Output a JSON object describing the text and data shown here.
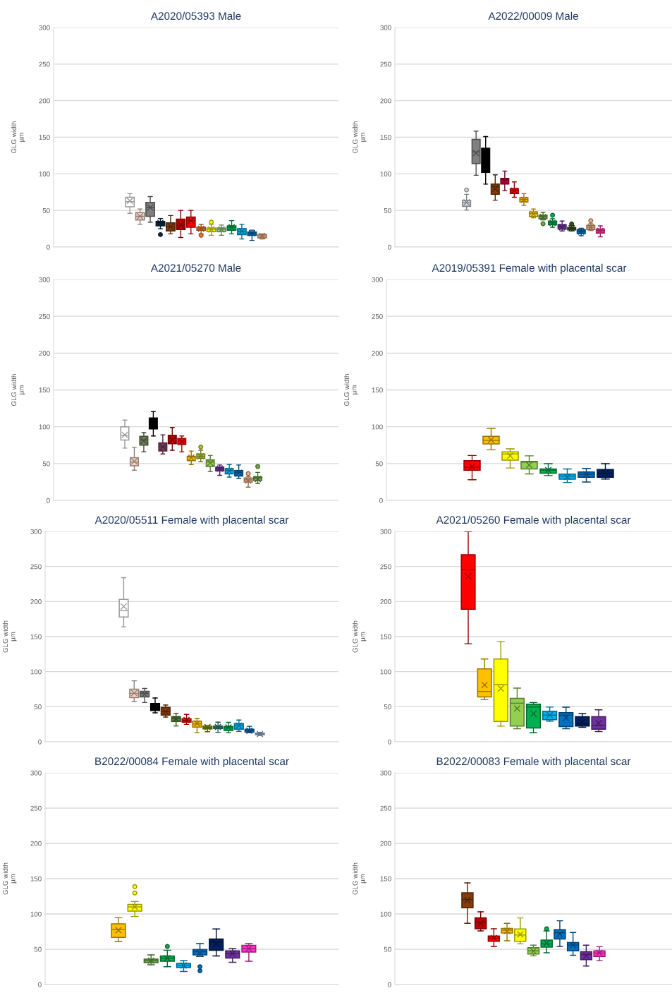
{
  "chart_data": [
    {
      "type": "box",
      "title": "A2020/05393 Male",
      "ylabel": "GLG width\nµm",
      "categories": [
        null,
        null,
        null,
        null,
        null,
        null,
        null,
        null,
        null,
        null,
        null,
        null,
        null,
        null,
        null,
        null,
        null,
        null,
        null,
        null,
        null,
        null,
        null,
        null,
        null,
        null,
        null,
        null
      ],
      "ylim": [
        0,
        300
      ],
      "yticks": [
        0,
        50,
        100,
        150,
        200,
        250,
        300
      ],
      "grid": "y",
      "tick_labels": "y",
      "colors": [
        null,
        null,
        null,
        null,
        null,
        null,
        null,
        "#ffffff",
        "#f2d0c0",
        "#808080",
        "#0f2a44",
        "#843c0c",
        "#c00000",
        "#ff0000",
        "#ed7d31",
        "#ffff00",
        "#a9d18e",
        "#00b050",
        "#00b0f0",
        "#0070c0",
        "#f4b183",
        null,
        null,
        null,
        null,
        null,
        null,
        null
      ],
      "boxes": [
        null,
        null,
        null,
        null,
        null,
        null,
        null,
        {
          "low": 46,
          "q1": 55,
          "median": 62,
          "q3": 68,
          "high": 73,
          "mean": 63
        },
        {
          "low": 31,
          "q1": 37,
          "median": 42,
          "q3": 47,
          "high": 52,
          "mean": 42
        },
        {
          "low": 34,
          "q1": 42,
          "median": 54,
          "q3": 61,
          "high": 69,
          "mean": 54
        },
        {
          "low": 25,
          "q1": 29,
          "median": 33,
          "q3": 35,
          "high": 39,
          "mean": 33,
          "outliers": [
            17
          ]
        },
        {
          "low": 18,
          "q1": 22,
          "median": 28,
          "q3": 33,
          "high": 43,
          "mean": 28
        },
        {
          "low": 13,
          "q1": 24,
          "median": 30,
          "q3": 38,
          "high": 50,
          "mean": 30
        },
        {
          "low": 18,
          "q1": 27,
          "median": 36,
          "q3": 41,
          "high": 50,
          "mean": 36
        },
        {
          "low": 18,
          "q1": 23,
          "median": 25,
          "q3": 27,
          "high": 31,
          "mean": 25,
          "outliers": [
            16
          ]
        },
        {
          "low": 16,
          "q1": 21,
          "median": 24,
          "q3": 26,
          "high": 31,
          "mean": 24,
          "outliers": [
            34
          ]
        },
        {
          "low": 16,
          "q1": 21,
          "median": 24,
          "q3": 26,
          "high": 30,
          "mean": 24
        },
        {
          "low": 18,
          "q1": 23,
          "median": 27,
          "q3": 29,
          "high": 36,
          "mean": 27
        },
        {
          "low": 11,
          "q1": 17,
          "median": 21.5,
          "q3": 25,
          "high": 31,
          "mean": 21.5
        },
        {
          "low": 9,
          "q1": 16,
          "median": 19,
          "q3": 20.5,
          "high": 23,
          "mean": 19
        },
        {
          "low": 11,
          "q1": 12.5,
          "median": 15,
          "q3": 17,
          "high": 18,
          "mean": 15
        },
        null,
        null,
        null,
        null,
        null,
        null,
        null
      ]
    },
    {
      "type": "box",
      "title": "A2022/00009 Male",
      "ylabel": "GLG width\nµm",
      "categories": [
        null,
        null,
        null,
        null,
        null,
        null,
        null,
        null,
        null,
        null,
        null,
        null,
        null,
        null,
        null,
        null,
        null,
        null,
        null,
        null,
        null,
        null,
        null,
        null,
        null,
        null,
        null,
        null,
        null
      ],
      "ylim": [
        0,
        300
      ],
      "yticks": [
        0,
        50,
        100,
        150,
        200,
        250,
        300
      ],
      "grid": "y",
      "tick_labels": "y",
      "colors": [
        null,
        null,
        null,
        null,
        null,
        null,
        null,
        "#d6dce5",
        "#808080",
        "#000000",
        "#843c0c",
        "#c0003c",
        "#ff0000",
        "#ffc000",
        "#ffd700",
        "#70ad47",
        "#00b050",
        "#7030a0",
        "#375623",
        "#0070c0",
        "#f4b183",
        "#ff3399",
        null,
        null,
        null,
        null,
        null,
        null,
        null
      ],
      "boxes": [
        null,
        null,
        null,
        null,
        null,
        null,
        null,
        {
          "low": 50.5,
          "q1": 55.6,
          "median": 60.5,
          "q3": 64,
          "high": 72,
          "mean": 61,
          "outliers": [
            78
          ]
        },
        {
          "low": 98,
          "q1": 114,
          "median": 130,
          "q3": 147,
          "high": 158.5,
          "mean": 128.5
        },
        {
          "low": 86,
          "q1": 102,
          "median": 123,
          "q3": 135,
          "high": 151,
          "mean": 119
        },
        {
          "low": 64,
          "q1": 72,
          "median": 82.6,
          "q3": 86,
          "high": 98.7,
          "mean": 79.4
        },
        {
          "low": 77,
          "q1": 86,
          "median": 91.6,
          "q3": 93.8,
          "high": 103.8,
          "mean": 90
        },
        {
          "low": 68,
          "q1": 73,
          "median": 77,
          "q3": 79.7,
          "high": 89,
          "mean": 77
        },
        {
          "low": 57,
          "q1": 61.7,
          "median": 65,
          "q3": 67.5,
          "high": 73,
          "mean": 64.5
        },
        {
          "low": 40,
          "q1": 41.8,
          "median": 45.6,
          "q3": 48,
          "high": 52,
          "mean": 45
        },
        {
          "low": 37,
          "q1": 38.9,
          "median": 41.8,
          "q3": 43.4,
          "high": 47.5,
          "mean": 41,
          "outliers": [
            31.8
          ]
        },
        {
          "low": 27,
          "q1": 30.5,
          "median": 33,
          "q3": 35.4,
          "high": 38.6,
          "mean": 33,
          "outliers": [
            43.4
          ]
        },
        {
          "low": 21.9,
          "q1": 24.7,
          "median": 28.3,
          "q3": 30.5,
          "high": 35.4,
          "mean": 27
        },
        {
          "low": 22,
          "q1": 23.5,
          "median": 26,
          "q3": 26.7,
          "high": 29.6,
          "mean": 25.6,
          "outliers": [
            31.5
          ]
        },
        {
          "low": 15.4,
          "q1": 18.6,
          "median": 21.5,
          "q3": 23.5,
          "high": 25.6,
          "mean": 21
        },
        {
          "low": 22.5,
          "q1": 24,
          "median": 27,
          "q3": 29.6,
          "high": 32,
          "mean": 27,
          "outliers": [
            36
          ]
        },
        {
          "low": 14,
          "q1": 19,
          "median": 22.5,
          "q3": 24.7,
          "high": 29,
          "mean": 22
        },
        null,
        null,
        null,
        null,
        null,
        null,
        null
      ]
    },
    {
      "type": "box",
      "title": "A2021/05270 Male",
      "ylabel": "GLG width\nµm",
      "categories": [
        null,
        null,
        null,
        null,
        null,
        null,
        null,
        null,
        null,
        null,
        null,
        null,
        null,
        null,
        null,
        null,
        null,
        null,
        null,
        null,
        null,
        null,
        null,
        null,
        null,
        null,
        null,
        null,
        null,
        null
      ],
      "ylim": [
        0,
        300
      ],
      "yticks": [
        0,
        50,
        100,
        150,
        200,
        250,
        300
      ],
      "grid": "y",
      "tick_labels": "y",
      "colors": [
        null,
        null,
        null,
        null,
        null,
        null,
        null,
        "#ffffff",
        "#f2d0c0",
        "#6e7f5a",
        "#000000",
        "#7b3f5e",
        "#c00000",
        "#ff0000",
        "#ffc000",
        "#b5c934",
        "#92d050",
        "#7030a0",
        "#00b0f0",
        "#0070c0",
        "#f4b183",
        "#70ad47",
        null,
        null,
        null,
        null,
        null,
        null,
        null,
        null
      ],
      "boxes": [
        null,
        null,
        null,
        null,
        null,
        null,
        null,
        {
          "low": 71,
          "q1": 82,
          "median": 88.5,
          "q3": 100,
          "high": 109,
          "mean": 89
        },
        {
          "low": 41,
          "q1": 47,
          "median": 52,
          "q3": 58,
          "high": 72,
          "mean": 53
        },
        {
          "low": 66,
          "q1": 75,
          "median": 82,
          "q3": 87,
          "high": 92,
          "mean": 81
        },
        {
          "low": 87.5,
          "q1": 97,
          "median": 106,
          "q3": 112,
          "high": 120.5,
          "mean": 105
        },
        {
          "low": 63,
          "q1": 67,
          "median": 72.5,
          "q3": 78,
          "high": 89,
          "mean": 72.5
        },
        {
          "low": 68,
          "q1": 77,
          "median": 84.7,
          "q3": 88.5,
          "high": 99,
          "mean": 82
        },
        {
          "low": 66,
          "q1": 76,
          "median": 80.5,
          "q3": 84,
          "high": 87.5,
          "mean": 80
        },
        {
          "low": 48.6,
          "q1": 54,
          "median": 59,
          "q3": 60,
          "high": 67,
          "mean": 58
        },
        {
          "low": 52.7,
          "q1": 57,
          "median": 60,
          "q3": 63,
          "high": 68,
          "mean": 60,
          "outliers": [
            72.5
          ]
        },
        {
          "low": 39,
          "q1": 46,
          "median": 52,
          "q3": 55,
          "high": 61,
          "mean": 51
        },
        {
          "low": 34,
          "q1": 40,
          "median": 43,
          "q3": 45,
          "high": 48,
          "mean": 43
        },
        {
          "low": 31.6,
          "q1": 36,
          "median": 40.6,
          "q3": 43,
          "high": 48.6,
          "mean": 40
        },
        {
          "low": 30,
          "q1": 33,
          "median": 38,
          "q3": 40.6,
          "high": 48,
          "mean": 37.5
        },
        {
          "low": 18,
          "q1": 25,
          "median": 27.8,
          "q3": 30.4,
          "high": 32.6,
          "mean": 27,
          "outliers": [
            36.4
          ]
        },
        {
          "low": 23,
          "q1": 27,
          "median": 30.4,
          "q3": 32,
          "high": 38,
          "mean": 29,
          "outliers": [
            46
          ]
        },
        null,
        null,
        null,
        null,
        null,
        null,
        null,
        null
      ]
    },
    {
      "type": "box",
      "title": "A2019/05391 Female with placental scar",
      "ylabel": "GLG width\nµm",
      "categories": [
        null,
        null,
        null,
        null,
        null,
        null,
        null,
        null,
        null,
        null,
        null,
        null,
        null,
        null,
        null
      ],
      "ylim": [
        0,
        300
      ],
      "yticks": [
        0,
        50,
        100,
        150,
        200,
        250,
        300
      ],
      "grid": "y",
      "tick_labels": "y",
      "colors": [
        null,
        null,
        null,
        null,
        "#ff0000",
        "#ffc000",
        "#ffff00",
        "#92d050",
        "#00b050",
        "#00b0f0",
        "#0070c0",
        "#002060",
        null,
        null,
        null
      ],
      "boxes": [
        null,
        null,
        null,
        null,
        {
          "low": 28,
          "q1": 41,
          "median": 45,
          "q3": 54,
          "high": 61,
          "mean": 46
        },
        {
          "low": 68.6,
          "q1": 76.7,
          "median": 81.5,
          "q3": 87,
          "high": 97.7,
          "mean": 82
        },
        {
          "low": 44,
          "q1": 54.7,
          "median": 63,
          "q3": 66,
          "high": 70,
          "mean": 60.5
        },
        {
          "low": 36,
          "q1": 42.7,
          "median": 52,
          "q3": 53,
          "high": 60.5,
          "mean": 48
        },
        {
          "low": 33.7,
          "q1": 36.9,
          "median": 41,
          "q3": 42.7,
          "high": 49.8,
          "mean": 41
        },
        {
          "low": 24.3,
          "q1": 28.8,
          "median": 33,
          "q3": 35.6,
          "high": 42.7,
          "mean": 32
        },
        {
          "low": 24.9,
          "q1": 31.4,
          "median": 35.5,
          "q3": 38.5,
          "high": 43.4,
          "mean": 35.5
        },
        {
          "low": 29,
          "q1": 31.4,
          "median": 36.9,
          "q3": 42,
          "high": 49.8,
          "mean": 37
        },
        null,
        null,
        null
      ]
    },
    {
      "type": "box",
      "title": "A2020/05511 Female with placental scar",
      "ylabel": "GLG width\nµm",
      "categories": [
        null,
        null,
        null,
        null,
        null,
        null,
        null,
        null,
        null,
        null,
        null,
        null,
        null,
        null,
        null,
        null,
        null,
        null,
        null,
        null,
        null,
        null,
        null,
        null,
        null,
        null,
        null,
        null
      ],
      "ylim": [
        0,
        300
      ],
      "yticks": [
        0,
        50,
        100,
        150,
        200,
        250,
        300
      ],
      "grid": "y",
      "tick_labels": "y",
      "colors": [
        null,
        null,
        null,
        null,
        null,
        null,
        null,
        "#ffffff",
        "#f2d0c0",
        "#7f7f7f",
        "#000000",
        "#843c0c",
        "#548235",
        "#ff0000",
        "#ffc000",
        "#8a9a00",
        "#2e8b7a",
        "#00b050",
        "#00b0f0",
        "#0070c0",
        "#9dc3e6",
        null,
        null,
        null,
        null,
        null,
        null,
        null
      ],
      "boxes": [
        null,
        null,
        null,
        null,
        null,
        null,
        null,
        {
          "low": 164,
          "q1": 178,
          "median": 187,
          "q3": 203,
          "high": 234,
          "mean": 193
        },
        {
          "low": 57.4,
          "q1": 63,
          "median": 69,
          "q3": 75,
          "high": 87,
          "mean": 69.5
        },
        {
          "low": 56,
          "q1": 64,
          "median": 69,
          "q3": 72,
          "high": 76,
          "mean": 68
        },
        {
          "low": 41.3,
          "q1": 44.6,
          "median": 50,
          "q3": 54.7,
          "high": 62.4,
          "mean": 50.7
        },
        {
          "low": 35.2,
          "q1": 38,
          "median": 43,
          "q3": 49,
          "high": 52.4,
          "mean": 43
        },
        {
          "low": 22.5,
          "q1": 28.9,
          "median": 33,
          "q3": 35.6,
          "high": 40.6,
          "mean": 32.6
        },
        {
          "low": 24.8,
          "q1": 27.9,
          "median": 30.5,
          "q3": 33,
          "high": 39,
          "mean": 31
        },
        {
          "low": 13,
          "q1": 21,
          "median": 25.5,
          "q3": 29.5,
          "high": 33,
          "mean": 26
        },
        {
          "low": 14.4,
          "q1": 18.5,
          "median": 20.5,
          "q3": 22.5,
          "high": 23,
          "mean": 21
        },
        {
          "low": 13.5,
          "q1": 18.8,
          "median": 21,
          "q3": 22.5,
          "high": 28,
          "mean": 21
        },
        {
          "low": 13,
          "q1": 16,
          "median": 20,
          "q3": 22,
          "high": 27.7,
          "mean": 20.5
        },
        {
          "low": 14.8,
          "q1": 17.8,
          "median": 23.8,
          "q3": 26,
          "high": 31,
          "mean": 23
        },
        {
          "low": 13,
          "q1": 13.8,
          "median": 15.8,
          "q3": 17.8,
          "high": 22,
          "mean": 15.8
        },
        {
          "low": 9,
          "q1": 10,
          "median": 11,
          "q3": 12.3,
          "high": 13.3,
          "mean": 11
        },
        null,
        null,
        null,
        null,
        null,
        null,
        null
      ]
    },
    {
      "type": "box",
      "title": "A2021/05260 Female with placental scar",
      "ylabel": "GLG width\nµm",
      "categories": [
        null,
        null,
        null,
        null,
        null,
        null,
        null,
        null,
        null,
        null,
        null,
        null,
        null,
        null,
        null,
        null,
        null
      ],
      "ylim": [
        0,
        300
      ],
      "yticks": [
        0,
        50,
        100,
        150,
        200,
        250,
        300
      ],
      "grid": "y",
      "tick_labels": "y",
      "colors": [
        null,
        null,
        null,
        null,
        "#ff0000",
        "#ffc000",
        "#ffff00",
        "#92d050",
        "#00b050",
        "#00b0f0",
        "#0070c0",
        "#002060",
        "#7030a0",
        null,
        null,
        null,
        null
      ],
      "boxes": [
        null,
        null,
        null,
        null,
        {
          "low": 139.8,
          "q1": 189,
          "median": 245.5,
          "q3": 266.7,
          "high": 300,
          "mean": 236
        },
        {
          "low": 60,
          "q1": 64,
          "median": 71.7,
          "q3": 104,
          "high": 118,
          "mean": 81
        },
        {
          "low": 22.3,
          "q1": 29,
          "median": 81.7,
          "q3": 118,
          "high": 142.8,
          "mean": 76
        },
        {
          "low": 18.6,
          "q1": 22.3,
          "median": 55,
          "q3": 62,
          "high": 76.5,
          "mean": 47.5
        },
        {
          "low": 12.9,
          "q1": 19.6,
          "median": 49.5,
          "q3": 53.5,
          "high": 56,
          "mean": 40
        },
        {
          "low": 29.4,
          "q1": 31.4,
          "median": 38,
          "q3": 43.5,
          "high": 49.5,
          "mean": 38
        },
        {
          "low": 18.6,
          "q1": 21.7,
          "median": 38,
          "q3": 41.5,
          "high": 49.3,
          "mean": 34
        },
        {
          "low": 20.6,
          "q1": 22.3,
          "median": 25.7,
          "q3": 35.7,
          "high": 40,
          "mean": 28
        },
        {
          "low": 14.6,
          "q1": 18,
          "median": 23.3,
          "q3": 35.7,
          "high": 45.5,
          "mean": 26.4
        },
        null,
        null,
        null,
        null
      ]
    },
    {
      "type": "box",
      "title": "B2022/00084 Female with placental scar",
      "ylabel": "GLG width\nµm",
      "categories": [
        null,
        null,
        null,
        null,
        null,
        null,
        null,
        null,
        null,
        null,
        null,
        null,
        null,
        null,
        null,
        null,
        null,
        null
      ],
      "ylim": [
        0,
        300
      ],
      "yticks": [
        0,
        50,
        100,
        150,
        200,
        250,
        300
      ],
      "grid": "y",
      "tick_labels": "y",
      "colors": [
        null,
        null,
        null,
        null,
        "#ffc000",
        "#ffff00",
        "#70ad47",
        "#00b050",
        "#00b0f0",
        "#0070c0",
        "#002060",
        "#7030a0",
        "#ff33cc",
        null,
        null,
        null,
        null,
        null
      ],
      "boxes": [
        null,
        null,
        null,
        null,
        {
          "low": 61,
          "q1": 66.7,
          "median": 78,
          "q3": 86,
          "high": 94.6,
          "mean": 77
        },
        {
          "low": 96.4,
          "q1": 104,
          "median": 110,
          "q3": 113.5,
          "high": 117.6,
          "mean": 110,
          "outliers": [
            129.7,
            138.7
          ]
        },
        {
          "low": 28,
          "q1": 31,
          "median": 33.8,
          "q3": 36,
          "high": 42,
          "mean": 33.8
        },
        {
          "low": 25.2,
          "q1": 32.9,
          "median": 37.4,
          "q3": 40.5,
          "high": 48.6,
          "mean": 37.4,
          "outliers": [
            54
          ]
        },
        {
          "low": 18.5,
          "q1": 23.9,
          "median": 27,
          "q3": 30,
          "high": 33.8,
          "mean": 27
        },
        {
          "low": 39.6,
          "q1": 42,
          "median": 46.4,
          "q3": 49.5,
          "high": 58,
          "mean": 44,
          "outliers": [
            25.2,
            19.4
          ]
        },
        {
          "low": 40.5,
          "q1": 48.6,
          "median": 60,
          "q3": 64.4,
          "high": 78.8,
          "mean": 57.6
        },
        {
          "low": 31.5,
          "q1": 37.4,
          "median": 44,
          "q3": 47.7,
          "high": 51,
          "mean": 44
        },
        {
          "low": 33,
          "q1": 46,
          "median": 51,
          "q3": 55.4,
          "high": 58,
          "mean": 51
        },
        null,
        null,
        null,
        null,
        null
      ]
    },
    {
      "type": "box",
      "title": "B2022/00083 Female with placental scar",
      "ylabel": "GLG width\nµm",
      "categories": [
        null,
        null,
        null,
        null,
        null,
        null,
        null,
        null,
        null,
        null,
        null,
        null,
        null,
        null,
        null,
        null,
        null,
        null,
        null,
        null,
        null
      ],
      "ylim": [
        0,
        300
      ],
      "yticks": [
        0,
        50,
        100,
        150,
        200,
        250,
        300
      ],
      "grid": "y",
      "tick_labels": "y",
      "colors": [
        null,
        null,
        null,
        null,
        null,
        "#843c0c",
        "#c00000",
        "#ff0000",
        "#ffc000",
        "#ffff00",
        "#92d050",
        "#00b050",
        "#0070c0",
        "#0070c0",
        "#7030a0",
        "#ff33cc",
        null,
        null,
        null,
        null,
        null
      ],
      "boxes": [
        null,
        null,
        null,
        null,
        null,
        {
          "low": 86.8,
          "q1": 108.7,
          "median": 120.4,
          "q3": 130,
          "high": 144,
          "mean": 119.5
        },
        {
          "low": 76,
          "q1": 79,
          "median": 88,
          "q3": 94.4,
          "high": 103,
          "mean": 86.8
        },
        {
          "low": 54,
          "q1": 61.2,
          "median": 65.7,
          "q3": 68.8,
          "high": 79,
          "mean": 65.7
        },
        {
          "low": 62,
          "q1": 72.9,
          "median": 77,
          "q3": 79.6,
          "high": 86.8,
          "mean": 76
        },
        {
          "low": 57.6,
          "q1": 61.2,
          "median": 70.2,
          "q3": 78.7,
          "high": 94.4,
          "mean": 71
        },
        {
          "low": 40.6,
          "q1": 43.3,
          "median": 47.8,
          "q3": 52.2,
          "high": 55.8,
          "mean": 47.3
        },
        {
          "low": 45,
          "q1": 53,
          "median": 57.6,
          "q3": 63,
          "high": 76,
          "mean": 58.5,
          "outliers": [
            79
          ]
        },
        {
          "low": 54,
          "q1": 64.4,
          "median": 73.3,
          "q3": 77.8,
          "high": 90.4,
          "mean": 71.5
        },
        {
          "low": 41.5,
          "q1": 47.8,
          "median": 55.8,
          "q3": 59.4,
          "high": 73.8,
          "mean": 55.8
        },
        {
          "low": 26.2,
          "q1": 35.2,
          "median": 42.4,
          "q3": 46.4,
          "high": 55.8,
          "mean": 40.6
        },
        {
          "low": 33.9,
          "q1": 39.7,
          "median": 44.6,
          "q3": 47.8,
          "high": 53.6,
          "mean": 45
        },
        null,
        null,
        null,
        null,
        null
      ]
    }
  ]
}
